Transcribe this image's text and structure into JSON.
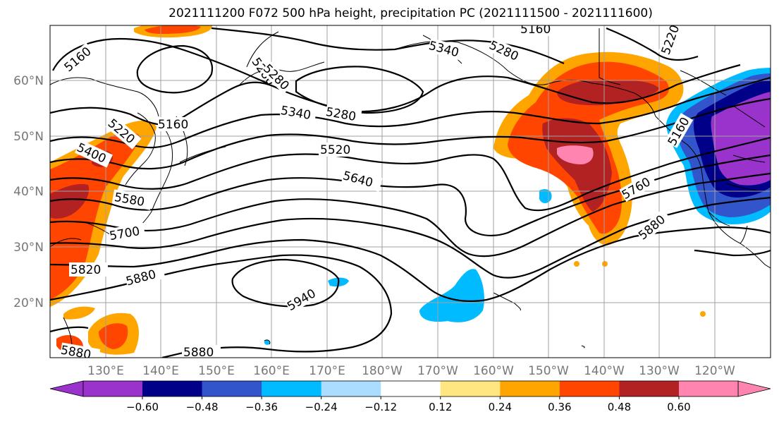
{
  "title": "2021111200 F072 500 hPa height, precipitation PC (2021111500 - 2021111600)",
  "lat_labels": [
    "60°N",
    "50°N",
    "40°N",
    "30°N",
    "20°N"
  ],
  "lon_labels": [
    "130°E",
    "140°E",
    "150°E",
    "160°E",
    "170°E",
    "180°W",
    "170°W",
    "160°W",
    "150°W",
    "140°W",
    "130°W",
    "120°W"
  ],
  "contour_labels": [
    "5160",
    "5280",
    "5160",
    "5340",
    "5280",
    "5160",
    "5220",
    "5280",
    "5220",
    "5340",
    "5280",
    "5160",
    "5400",
    "5520",
    "5580",
    "5640",
    "5760",
    "5700",
    "5820",
    "5880",
    "5940",
    "5880",
    "5880",
    "5880"
  ],
  "colorbar": {
    "colors": [
      "#9933cc",
      "#000088",
      "#3355cc",
      "#00bbff",
      "#aaddff",
      "#ffffff",
      "#ffe680",
      "#ffa500",
      "#ff4500",
      "#b22222",
      "#ff85b0"
    ],
    "tick_labels": [
      "−0.60",
      "−0.48",
      "−0.36",
      "−0.24",
      "−0.12",
      "0.12",
      "0.24",
      "0.36",
      "0.48",
      "0.60"
    ]
  }
}
